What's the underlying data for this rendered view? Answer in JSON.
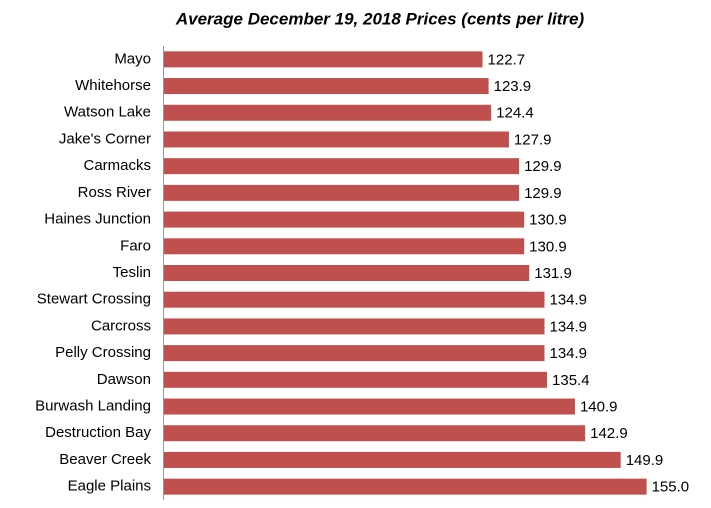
{
  "chart_data": {
    "type": "bar",
    "orientation": "horizontal",
    "title": "Average December 19, 2018 Prices (cents per litre)",
    "categories": [
      "Mayo",
      "Whitehorse",
      "Watson Lake",
      "Jake's Corner",
      "Carmacks",
      "Ross River",
      "Haines Junction",
      "Faro",
      "Teslin",
      "Stewart Crossing",
      "Carcross",
      "Pelly Crossing",
      "Dawson",
      "Burwash Landing",
      "Destruction Bay",
      "Beaver Creek",
      "Eagle Plains"
    ],
    "values": [
      122.7,
      123.9,
      124.4,
      127.9,
      129.9,
      129.9,
      130.9,
      130.9,
      131.9,
      134.9,
      134.9,
      134.9,
      135.4,
      140.9,
      142.9,
      149.9,
      155.0
    ],
    "value_labels": [
      "122.7",
      "123.9",
      "124.4",
      "127.9",
      "129.9",
      "129.9",
      "130.9",
      "130.9",
      "131.9",
      "134.9",
      "134.9",
      "134.9",
      "135.4",
      "140.9",
      "142.9",
      "149.9",
      "155.0"
    ],
    "color": "#c0504d",
    "xlim": [
      60,
      160
    ]
  }
}
